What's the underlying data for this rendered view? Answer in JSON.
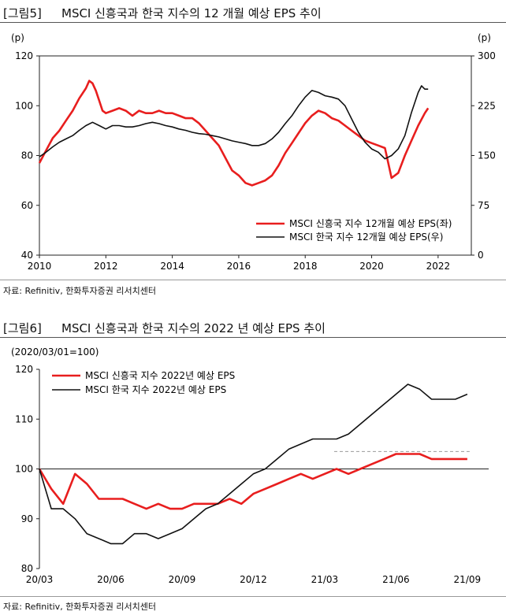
{
  "figure5": {
    "tag": "[그림5]",
    "title": "MSCI 신흥국과 한국 지수의 12 개월 예상 EPS 추이",
    "source": "자료: Refinitiv, 한화투자증권 리서치센터",
    "chart_data": {
      "type": "line",
      "left_unit": "(p)",
      "right_unit": "(p)",
      "xlim": [
        2010,
        2023
      ],
      "x_ticks": [
        2010,
        2012,
        2014,
        2016,
        2018,
        2020,
        2022
      ],
      "ylim_left": [
        40,
        120
      ],
      "y_ticks_left": [
        40,
        60,
        80,
        100,
        120
      ],
      "ylim_right": [
        0,
        300
      ],
      "y_ticks_right": [
        0,
        75,
        150,
        225,
        300
      ],
      "legend_position": "bottom-right",
      "series": [
        {
          "name": "MSCI 신흥국 지수 12개월 예상 EPS(좌)",
          "axis": "left",
          "color": "#e81e1e",
          "x": [
            2010.0,
            2010.2,
            2010.4,
            2010.6,
            2010.8,
            2011.0,
            2011.2,
            2011.4,
            2011.5,
            2011.6,
            2011.7,
            2011.8,
            2011.9,
            2012.0,
            2012.2,
            2012.4,
            2012.6,
            2012.8,
            2013.0,
            2013.2,
            2013.4,
            2013.6,
            2013.8,
            2014.0,
            2014.2,
            2014.4,
            2014.6,
            2014.8,
            2015.0,
            2015.2,
            2015.4,
            2015.6,
            2015.8,
            2016.0,
            2016.2,
            2016.4,
            2016.6,
            2016.8,
            2017.0,
            2017.2,
            2017.4,
            2017.6,
            2017.8,
            2018.0,
            2018.2,
            2018.4,
            2018.6,
            2018.8,
            2019.0,
            2019.2,
            2019.4,
            2019.6,
            2019.8,
            2020.0,
            2020.2,
            2020.4,
            2020.5,
            2020.6,
            2020.8,
            2021.0,
            2021.2,
            2021.4,
            2021.6,
            2021.7
          ],
          "values": [
            77,
            82,
            87,
            90,
            94,
            98,
            103,
            107,
            110,
            109,
            106,
            102,
            98,
            97,
            98,
            99,
            98,
            96,
            98,
            97,
            97,
            98,
            97,
            97,
            96,
            95,
            95,
            93,
            90,
            87,
            84,
            79,
            74,
            72,
            69,
            68,
            69,
            70,
            72,
            76,
            81,
            85,
            89,
            93,
            96,
            98,
            97,
            95,
            94,
            92,
            90,
            88,
            86,
            85,
            84,
            83,
            77,
            71,
            73,
            80,
            86,
            92,
            97,
            99
          ]
        },
        {
          "name": "MSCI 한국 지수 12개월 예상 EPS(우)",
          "axis": "right",
          "color": "#111111",
          "x": [
            2010.0,
            2010.2,
            2010.4,
            2010.6,
            2010.8,
            2011.0,
            2011.2,
            2011.4,
            2011.6,
            2011.8,
            2012.0,
            2012.2,
            2012.4,
            2012.6,
            2012.8,
            2013.0,
            2013.2,
            2013.4,
            2013.6,
            2013.8,
            2014.0,
            2014.2,
            2014.4,
            2014.6,
            2014.8,
            2015.0,
            2015.2,
            2015.4,
            2015.6,
            2015.8,
            2016.0,
            2016.2,
            2016.4,
            2016.6,
            2016.8,
            2017.0,
            2017.2,
            2017.4,
            2017.6,
            2017.8,
            2018.0,
            2018.2,
            2018.4,
            2018.6,
            2018.8,
            2019.0,
            2019.2,
            2019.4,
            2019.6,
            2019.8,
            2020.0,
            2020.2,
            2020.4,
            2020.6,
            2020.8,
            2021.0,
            2021.2,
            2021.4,
            2021.5,
            2021.6,
            2021.7
          ],
          "values": [
            148,
            155,
            163,
            170,
            175,
            180,
            188,
            195,
            200,
            195,
            190,
            195,
            195,
            193,
            193,
            195,
            198,
            200,
            198,
            195,
            193,
            190,
            188,
            185,
            183,
            182,
            180,
            178,
            175,
            172,
            170,
            168,
            165,
            165,
            168,
            175,
            185,
            198,
            210,
            225,
            238,
            248,
            245,
            240,
            238,
            235,
            225,
            205,
            185,
            170,
            160,
            155,
            145,
            150,
            160,
            180,
            215,
            245,
            255,
            250,
            250
          ]
        }
      ]
    }
  },
  "figure6": {
    "tag": "[그림6]",
    "title": "MSCI 신흥국과 한국 지수의 2022 년 예상 EPS 추이",
    "source": "자료: Refinitiv, 한화투자증권 리서치센터",
    "chart_data": {
      "type": "line",
      "axis_note": "(2020/03/01=100)",
      "x_ticks": [
        "20/03",
        "20/06",
        "20/09",
        "20/12",
        "21/03",
        "21/06",
        "21/09"
      ],
      "ylim": [
        80,
        120
      ],
      "y_ticks": [
        80,
        90,
        100,
        110,
        120
      ],
      "legend_position": "top-left",
      "reference_line": {
        "value": 103.5,
        "x_start": 12.4,
        "x_end": 18.1,
        "style": "dashed",
        "color": "#999999"
      },
      "series": [
        {
          "name": "MSCI 신흥국 지수 2022년 예상 EPS",
          "color": "#e81e1e",
          "x": [
            0,
            0.5,
            1,
            1.5,
            2,
            2.5,
            3,
            3.5,
            4,
            4.5,
            5,
            5.5,
            6,
            6.5,
            7,
            7.5,
            8,
            8.5,
            9,
            9.5,
            10,
            10.5,
            11,
            11.5,
            12,
            12.5,
            13,
            13.5,
            14,
            14.5,
            15,
            15.5,
            16,
            16.5,
            17,
            17.5,
            18
          ],
          "values": [
            100,
            96,
            93,
            99,
            97,
            94,
            94,
            94,
            93,
            92,
            93,
            92,
            92,
            93,
            93,
            93,
            94,
            93,
            95,
            96,
            97,
            98,
            99,
            98,
            99,
            100,
            99,
            100,
            101,
            102,
            103,
            103,
            103,
            102,
            102,
            102,
            102
          ]
        },
        {
          "name": "MSCI 한국 지수 2022년 예상 EPS",
          "color": "#111111",
          "x": [
            0,
            0.5,
            1,
            1.5,
            2,
            2.5,
            3,
            3.5,
            4,
            4.5,
            5,
            5.5,
            6,
            6.5,
            7,
            7.5,
            8,
            8.5,
            9,
            9.5,
            10,
            10.5,
            11,
            11.5,
            12,
            12.5,
            13,
            13.5,
            14,
            14.5,
            15,
            15.5,
            16,
            16.5,
            17,
            17.5,
            18
          ],
          "values": [
            100,
            92,
            92,
            90,
            87,
            86,
            85,
            85,
            87,
            87,
            86,
            87,
            88,
            90,
            92,
            93,
            95,
            97,
            99,
            100,
            102,
            104,
            105,
            106,
            106,
            106,
            107,
            109,
            111,
            113,
            115,
            117,
            116,
            114,
            114,
            114,
            115
          ]
        }
      ]
    }
  }
}
